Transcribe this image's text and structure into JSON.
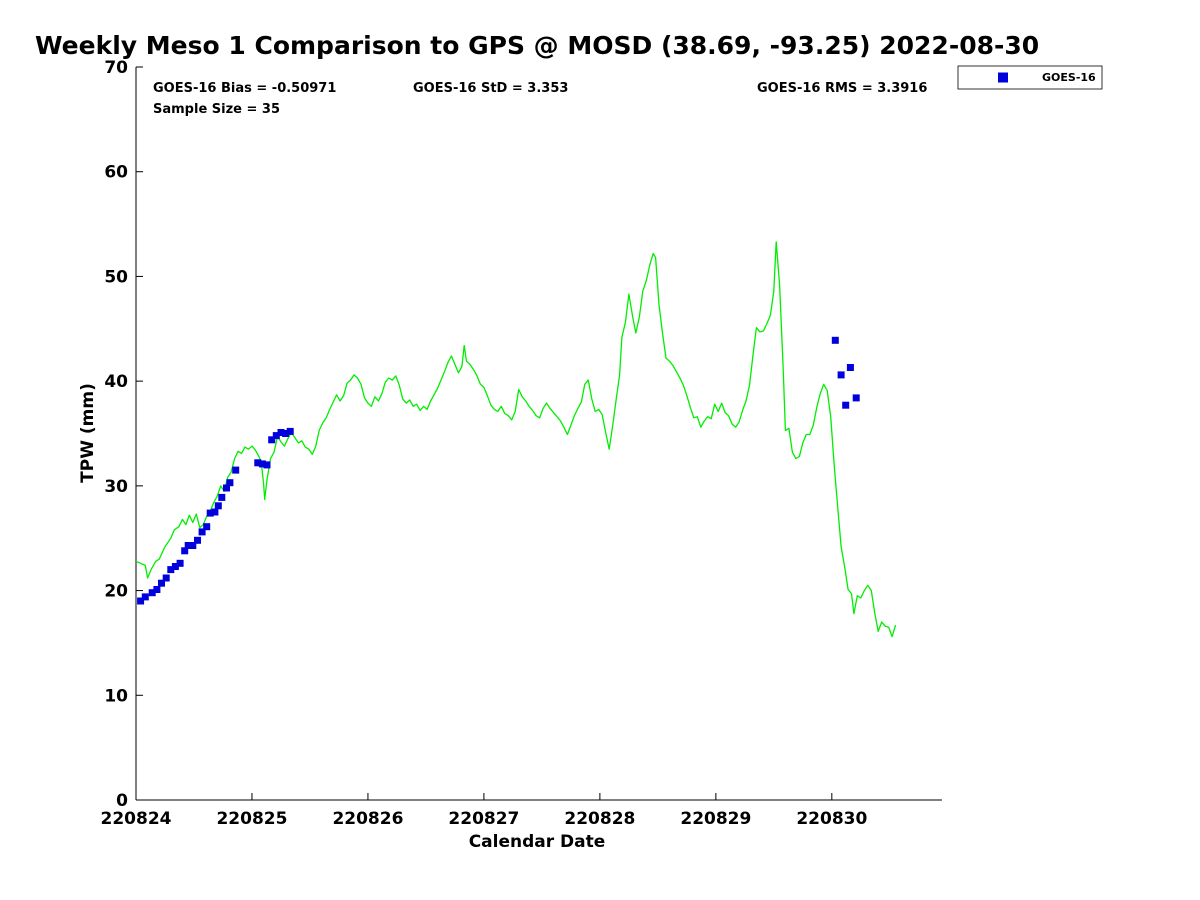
{
  "chart_data": {
    "type": "line",
    "title": "Weekly Meso 1 Comparison to GPS @ MOSD (38.69, -93.25) 2022-08-30",
    "xlabel": "Calendar Date",
    "ylabel": "TPW (mm)",
    "x_unit": "days since 220824 00Z",
    "xlim": [
      0,
      6.95
    ],
    "ylim": [
      0,
      70
    ],
    "y_ticks": [
      0,
      10,
      20,
      30,
      40,
      50,
      60,
      70
    ],
    "x_ticks": [
      {
        "value": 0,
        "label": "220824"
      },
      {
        "value": 1,
        "label": "220825"
      },
      {
        "value": 2,
        "label": "220826"
      },
      {
        "value": 3,
        "label": "220827"
      },
      {
        "value": 4,
        "label": "220828"
      },
      {
        "value": 5,
        "label": "220829"
      },
      {
        "value": 6,
        "label": "220830"
      }
    ],
    "stats": {
      "bias": "GOES-16 Bias = -0.50971",
      "std": "GOES-16 StD = 3.353",
      "rms": "GOES-16 RMS = 3.3916",
      "sample": "Sample Size = 35"
    },
    "legend": {
      "entries": [
        "GOES-16"
      ],
      "placement": "top-right outside plot"
    },
    "colors": {
      "gps": "#00ee00",
      "goes": "#0000dd",
      "axis": "#000000"
    },
    "series": [
      {
        "name": "GPS",
        "style": "line",
        "points": [
          [
            0.0,
            22.8
          ],
          [
            0.04,
            22.6
          ],
          [
            0.08,
            22.4
          ],
          [
            0.1,
            21.2
          ],
          [
            0.13,
            22.0
          ],
          [
            0.17,
            22.8
          ],
          [
            0.2,
            23.0
          ],
          [
            0.25,
            24.2
          ],
          [
            0.3,
            25.0
          ],
          [
            0.33,
            25.8
          ],
          [
            0.37,
            26.1
          ],
          [
            0.4,
            26.8
          ],
          [
            0.43,
            26.3
          ],
          [
            0.46,
            27.2
          ],
          [
            0.49,
            26.5
          ],
          [
            0.52,
            27.3
          ],
          [
            0.55,
            26.0
          ],
          [
            0.58,
            26.3
          ],
          [
            0.61,
            27.1
          ],
          [
            0.64,
            27.6
          ],
          [
            0.67,
            28.4
          ],
          [
            0.7,
            29.0
          ],
          [
            0.73,
            30.0
          ],
          [
            0.76,
            29.5
          ],
          [
            0.79,
            30.8
          ],
          [
            0.82,
            31.3
          ],
          [
            0.85,
            32.6
          ],
          [
            0.88,
            33.3
          ],
          [
            0.91,
            33.1
          ],
          [
            0.94,
            33.7
          ],
          [
            0.97,
            33.5
          ],
          [
            1.0,
            33.8
          ],
          [
            1.03,
            33.4
          ],
          [
            1.06,
            32.8
          ],
          [
            1.08,
            32.3
          ],
          [
            1.1,
            30.2
          ],
          [
            1.11,
            28.7
          ],
          [
            1.13,
            30.6
          ],
          [
            1.16,
            32.6
          ],
          [
            1.19,
            33.2
          ],
          [
            1.22,
            34.7
          ],
          [
            1.25,
            34.2
          ],
          [
            1.28,
            33.8
          ],
          [
            1.31,
            34.5
          ],
          [
            1.34,
            35.1
          ],
          [
            1.37,
            34.6
          ],
          [
            1.4,
            34.1
          ],
          [
            1.43,
            34.3
          ],
          [
            1.46,
            33.7
          ],
          [
            1.49,
            33.5
          ],
          [
            1.52,
            33.0
          ],
          [
            1.55,
            33.8
          ],
          [
            1.58,
            35.3
          ],
          [
            1.61,
            36.0
          ],
          [
            1.64,
            36.5
          ],
          [
            1.67,
            37.3
          ],
          [
            1.7,
            38.0
          ],
          [
            1.73,
            38.7
          ],
          [
            1.76,
            38.1
          ],
          [
            1.79,
            38.6
          ],
          [
            1.82,
            39.8
          ],
          [
            1.85,
            40.1
          ],
          [
            1.88,
            40.6
          ],
          [
            1.91,
            40.3
          ],
          [
            1.94,
            39.7
          ],
          [
            1.97,
            38.4
          ],
          [
            2.0,
            37.9
          ],
          [
            2.03,
            37.6
          ],
          [
            2.06,
            38.5
          ],
          [
            2.09,
            38.1
          ],
          [
            2.12,
            38.8
          ],
          [
            2.15,
            39.9
          ],
          [
            2.18,
            40.3
          ],
          [
            2.21,
            40.1
          ],
          [
            2.24,
            40.5
          ],
          [
            2.27,
            39.6
          ],
          [
            2.3,
            38.3
          ],
          [
            2.33,
            37.9
          ],
          [
            2.36,
            38.2
          ],
          [
            2.39,
            37.6
          ],
          [
            2.42,
            37.8
          ],
          [
            2.45,
            37.2
          ],
          [
            2.48,
            37.6
          ],
          [
            2.51,
            37.3
          ],
          [
            2.54,
            38.1
          ],
          [
            2.57,
            38.7
          ],
          [
            2.6,
            39.3
          ],
          [
            2.63,
            40.1
          ],
          [
            2.66,
            40.9
          ],
          [
            2.69,
            41.8
          ],
          [
            2.72,
            42.4
          ],
          [
            2.75,
            41.6
          ],
          [
            2.78,
            40.8
          ],
          [
            2.81,
            41.4
          ],
          [
            2.83,
            43.4
          ],
          [
            2.85,
            41.9
          ],
          [
            2.88,
            41.6
          ],
          [
            2.91,
            41.1
          ],
          [
            2.94,
            40.5
          ],
          [
            2.97,
            39.7
          ],
          [
            3.0,
            39.4
          ],
          [
            3.03,
            38.6
          ],
          [
            3.06,
            37.7
          ],
          [
            3.09,
            37.3
          ],
          [
            3.12,
            37.1
          ],
          [
            3.15,
            37.6
          ],
          [
            3.18,
            36.9
          ],
          [
            3.21,
            36.7
          ],
          [
            3.24,
            36.3
          ],
          [
            3.27,
            37.1
          ],
          [
            3.3,
            39.2
          ],
          [
            3.33,
            38.5
          ],
          [
            3.36,
            38.1
          ],
          [
            3.39,
            37.6
          ],
          [
            3.42,
            37.2
          ],
          [
            3.45,
            36.7
          ],
          [
            3.48,
            36.5
          ],
          [
            3.51,
            37.4
          ],
          [
            3.54,
            37.9
          ],
          [
            3.57,
            37.4
          ],
          [
            3.6,
            37.0
          ],
          [
            3.63,
            36.6
          ],
          [
            3.66,
            36.2
          ],
          [
            3.69,
            35.6
          ],
          [
            3.72,
            34.9
          ],
          [
            3.75,
            35.8
          ],
          [
            3.78,
            36.7
          ],
          [
            3.81,
            37.4
          ],
          [
            3.84,
            38.0
          ],
          [
            3.87,
            39.7
          ],
          [
            3.9,
            40.1
          ],
          [
            3.93,
            38.3
          ],
          [
            3.96,
            37.1
          ],
          [
            3.99,
            37.3
          ],
          [
            4.02,
            36.8
          ],
          [
            4.05,
            35.1
          ],
          [
            4.08,
            33.5
          ],
          [
            4.11,
            35.7
          ],
          [
            4.14,
            38.2
          ],
          [
            4.17,
            40.6
          ],
          [
            4.19,
            44.2
          ],
          [
            4.22,
            45.6
          ],
          [
            4.25,
            48.3
          ],
          [
            4.28,
            46.3
          ],
          [
            4.31,
            44.6
          ],
          [
            4.34,
            46.1
          ],
          [
            4.37,
            48.6
          ],
          [
            4.4,
            49.6
          ],
          [
            4.43,
            51.1
          ],
          [
            4.46,
            52.2
          ],
          [
            4.48,
            51.8
          ],
          [
            4.51,
            47.3
          ],
          [
            4.54,
            44.6
          ],
          [
            4.57,
            42.2
          ],
          [
            4.6,
            41.9
          ],
          [
            4.63,
            41.5
          ],
          [
            4.66,
            40.9
          ],
          [
            4.69,
            40.3
          ],
          [
            4.72,
            39.6
          ],
          [
            4.75,
            38.6
          ],
          [
            4.78,
            37.5
          ],
          [
            4.81,
            36.5
          ],
          [
            4.84,
            36.6
          ],
          [
            4.87,
            35.6
          ],
          [
            4.9,
            36.2
          ],
          [
            4.93,
            36.6
          ],
          [
            4.96,
            36.4
          ],
          [
            4.99,
            37.8
          ],
          [
            5.02,
            37.1
          ],
          [
            5.05,
            37.9
          ],
          [
            5.08,
            37.0
          ],
          [
            5.11,
            36.7
          ],
          [
            5.14,
            35.9
          ],
          [
            5.17,
            35.6
          ],
          [
            5.2,
            36.1
          ],
          [
            5.23,
            37.2
          ],
          [
            5.26,
            38.1
          ],
          [
            5.29,
            39.6
          ],
          [
            5.32,
            42.5
          ],
          [
            5.35,
            45.1
          ],
          [
            5.38,
            44.7
          ],
          [
            5.41,
            44.8
          ],
          [
            5.44,
            45.5
          ],
          [
            5.47,
            46.3
          ],
          [
            5.5,
            48.6
          ],
          [
            5.52,
            53.3
          ],
          [
            5.55,
            49.2
          ],
          [
            5.58,
            41.4
          ],
          [
            5.6,
            35.3
          ],
          [
            5.63,
            35.5
          ],
          [
            5.66,
            33.2
          ],
          [
            5.69,
            32.6
          ],
          [
            5.72,
            32.8
          ],
          [
            5.75,
            34.1
          ],
          [
            5.78,
            34.9
          ],
          [
            5.81,
            34.9
          ],
          [
            5.84,
            35.8
          ],
          [
            5.87,
            37.5
          ],
          [
            5.9,
            38.8
          ],
          [
            5.93,
            39.7
          ],
          [
            5.96,
            39.1
          ],
          [
            5.99,
            36.6
          ],
          [
            6.02,
            32.1
          ],
          [
            6.05,
            28.1
          ],
          [
            6.08,
            24.2
          ],
          [
            6.11,
            22.3
          ],
          [
            6.14,
            20.1
          ],
          [
            6.17,
            19.7
          ],
          [
            6.19,
            17.8
          ],
          [
            6.22,
            19.5
          ],
          [
            6.25,
            19.3
          ],
          [
            6.28,
            20.0
          ],
          [
            6.31,
            20.5
          ],
          [
            6.34,
            20.0
          ],
          [
            6.37,
            17.9
          ],
          [
            6.4,
            16.1
          ],
          [
            6.43,
            17.0
          ],
          [
            6.46,
            16.6
          ],
          [
            6.49,
            16.5
          ],
          [
            6.52,
            15.6
          ],
          [
            6.55,
            16.7
          ]
        ]
      },
      {
        "name": "GOES-16",
        "style": "markers",
        "points": [
          [
            0.04,
            19.0
          ],
          [
            0.08,
            19.4
          ],
          [
            0.14,
            19.8
          ],
          [
            0.18,
            20.1
          ],
          [
            0.22,
            20.7
          ],
          [
            0.26,
            21.2
          ],
          [
            0.3,
            22.0
          ],
          [
            0.34,
            22.3
          ],
          [
            0.38,
            22.6
          ],
          [
            0.42,
            23.8
          ],
          [
            0.45,
            24.3
          ],
          [
            0.49,
            24.3
          ],
          [
            0.53,
            24.8
          ],
          [
            0.57,
            25.6
          ],
          [
            0.61,
            26.1
          ],
          [
            0.64,
            27.4
          ],
          [
            0.68,
            27.5
          ],
          [
            0.71,
            28.1
          ],
          [
            0.74,
            28.9
          ],
          [
            0.78,
            29.8
          ],
          [
            0.81,
            30.3
          ],
          [
            0.86,
            31.5
          ],
          [
            1.05,
            32.2
          ],
          [
            1.09,
            32.1
          ],
          [
            1.13,
            32.0
          ],
          [
            1.17,
            34.4
          ],
          [
            1.21,
            34.8
          ],
          [
            1.25,
            35.1
          ],
          [
            1.29,
            35.0
          ],
          [
            1.33,
            35.2
          ],
          [
            6.03,
            43.9
          ],
          [
            6.08,
            40.6
          ],
          [
            6.12,
            37.7
          ],
          [
            6.16,
            41.3
          ],
          [
            6.21,
            38.4
          ]
        ]
      }
    ]
  }
}
